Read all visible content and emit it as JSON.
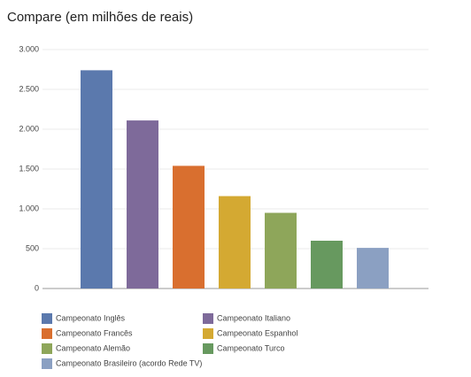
{
  "chart_data": {
    "type": "bar",
    "title": "Compare (em milhões de reais)",
    "categories": [
      "Campeonato Inglês",
      "Campeonato Italiano",
      "Campeonato Francês",
      "Campeonato Espanhol",
      "Campeonato Alemão",
      "Campeonato Turco",
      "Campeonato Brasileiro (acordo Rede TV)"
    ],
    "values": [
      2740,
      2110,
      1540,
      1160,
      950,
      600,
      510
    ],
    "colors": [
      "#5b79ad",
      "#7e6a9a",
      "#d96f2f",
      "#d4a932",
      "#8ea65a",
      "#67995f",
      "#8ba0c2"
    ],
    "ylim": [
      0,
      3000
    ],
    "yticks": [
      0,
      500,
      {
        "value": 1000,
        "label": "1.000"
      },
      {
        "value": 1500,
        "label": "1.500"
      },
      {
        "value": 2000,
        "label": "2.000"
      },
      {
        "value": 2500,
        "label": "2.500"
      },
      {
        "value": 3000,
        "label": "3.000"
      }
    ],
    "grid": true
  }
}
